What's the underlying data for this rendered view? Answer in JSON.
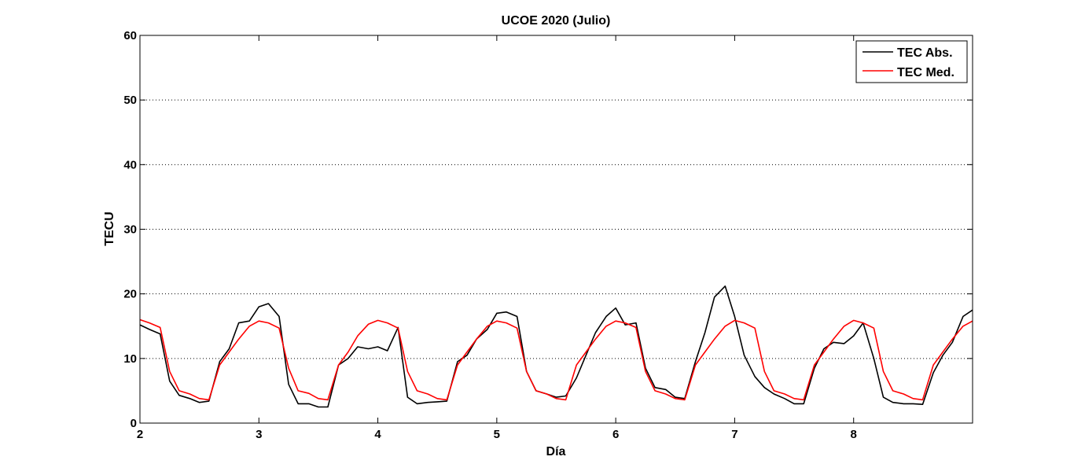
{
  "chart_data": {
    "type": "line",
    "title": "UCOE 2020 (Julio)",
    "xlabel": "Día",
    "ylabel": "TECU",
    "xlim": [
      2,
      9
    ],
    "ylim": [
      0,
      60
    ],
    "xticks": [
      2,
      3,
      4,
      5,
      6,
      7,
      8
    ],
    "yticks": [
      0,
      10,
      20,
      30,
      40,
      50,
      60
    ],
    "grid": "horizontal-dotted",
    "legend_position": "top-right",
    "series": [
      {
        "name": "TEC Abs.",
        "color": "#000000",
        "points": [
          [
            2.0,
            15.2
          ],
          [
            2.08,
            14.5
          ],
          [
            2.17,
            13.8
          ],
          [
            2.25,
            6.5
          ],
          [
            2.33,
            4.3
          ],
          [
            2.42,
            3.8
          ],
          [
            2.5,
            3.2
          ],
          [
            2.58,
            3.4
          ],
          [
            2.67,
            9.5
          ],
          [
            2.75,
            11.5
          ],
          [
            2.83,
            15.5
          ],
          [
            2.92,
            15.8
          ],
          [
            3.0,
            18.0
          ],
          [
            3.08,
            18.5
          ],
          [
            3.17,
            16.5
          ],
          [
            3.25,
            6.0
          ],
          [
            3.33,
            3.0
          ],
          [
            3.42,
            3.0
          ],
          [
            3.5,
            2.5
          ],
          [
            3.58,
            2.5
          ],
          [
            3.67,
            9.0
          ],
          [
            3.75,
            10.0
          ],
          [
            3.83,
            11.8
          ],
          [
            3.92,
            11.5
          ],
          [
            4.0,
            11.8
          ],
          [
            4.08,
            11.2
          ],
          [
            4.17,
            14.8
          ],
          [
            4.25,
            4.0
          ],
          [
            4.33,
            3.0
          ],
          [
            4.42,
            3.2
          ],
          [
            4.5,
            3.3
          ],
          [
            4.58,
            3.4
          ],
          [
            4.67,
            9.5
          ],
          [
            4.75,
            10.5
          ],
          [
            4.83,
            13.0
          ],
          [
            4.92,
            14.5
          ],
          [
            5.0,
            17.0
          ],
          [
            5.08,
            17.2
          ],
          [
            5.17,
            16.5
          ],
          [
            5.25,
            8.0
          ],
          [
            5.33,
            5.0
          ],
          [
            5.42,
            4.5
          ],
          [
            5.5,
            4.0
          ],
          [
            5.58,
            4.2
          ],
          [
            5.67,
            7.0
          ],
          [
            5.75,
            10.5
          ],
          [
            5.83,
            14.0
          ],
          [
            5.92,
            16.5
          ],
          [
            6.0,
            17.8
          ],
          [
            6.08,
            15.2
          ],
          [
            6.17,
            15.5
          ],
          [
            6.25,
            8.5
          ],
          [
            6.33,
            5.5
          ],
          [
            6.42,
            5.2
          ],
          [
            6.5,
            4.0
          ],
          [
            6.58,
            3.8
          ],
          [
            6.67,
            9.5
          ],
          [
            6.75,
            14.0
          ],
          [
            6.83,
            19.5
          ],
          [
            6.92,
            21.2
          ],
          [
            7.0,
            16.5
          ],
          [
            7.08,
            10.5
          ],
          [
            7.17,
            7.2
          ],
          [
            7.25,
            5.5
          ],
          [
            7.33,
            4.5
          ],
          [
            7.42,
            3.8
          ],
          [
            7.5,
            3.0
          ],
          [
            7.58,
            3.0
          ],
          [
            7.67,
            8.5
          ],
          [
            7.75,
            11.5
          ],
          [
            7.83,
            12.5
          ],
          [
            7.92,
            12.3
          ],
          [
            8.0,
            13.5
          ],
          [
            8.08,
            15.5
          ],
          [
            8.17,
            10.0
          ],
          [
            8.25,
            4.0
          ],
          [
            8.33,
            3.2
          ],
          [
            8.42,
            3.0
          ],
          [
            8.5,
            3.0
          ],
          [
            8.58,
            2.9
          ],
          [
            8.67,
            7.8
          ],
          [
            8.75,
            10.5
          ],
          [
            8.83,
            12.5
          ],
          [
            8.92,
            16.5
          ],
          [
            9.0,
            17.5
          ]
        ]
      },
      {
        "name": "TEC Med.",
        "color": "#ff0000",
        "points": [
          [
            2.0,
            16.0
          ],
          [
            2.08,
            15.5
          ],
          [
            2.17,
            14.8
          ],
          [
            2.25,
            8.0
          ],
          [
            2.33,
            5.0
          ],
          [
            2.42,
            4.5
          ],
          [
            2.5,
            3.8
          ],
          [
            2.58,
            3.6
          ],
          [
            2.67,
            9.0
          ],
          [
            2.75,
            11.0
          ],
          [
            2.83,
            13.0
          ],
          [
            2.92,
            15.0
          ],
          [
            3.0,
            15.8
          ],
          [
            3.08,
            15.5
          ],
          [
            3.17,
            14.7
          ],
          [
            3.25,
            8.5
          ],
          [
            3.33,
            5.0
          ],
          [
            3.42,
            4.6
          ],
          [
            3.5,
            3.8
          ],
          [
            3.58,
            3.6
          ],
          [
            3.67,
            9.0
          ],
          [
            3.75,
            11.0
          ],
          [
            3.83,
            13.5
          ],
          [
            3.92,
            15.3
          ],
          [
            4.0,
            15.9
          ],
          [
            4.08,
            15.5
          ],
          [
            4.17,
            14.7
          ],
          [
            4.25,
            8.0
          ],
          [
            4.33,
            5.0
          ],
          [
            4.42,
            4.5
          ],
          [
            4.5,
            3.8
          ],
          [
            4.58,
            3.6
          ],
          [
            4.67,
            9.0
          ],
          [
            4.75,
            11.0
          ],
          [
            4.83,
            13.0
          ],
          [
            4.92,
            15.0
          ],
          [
            5.0,
            15.8
          ],
          [
            5.08,
            15.5
          ],
          [
            5.17,
            14.7
          ],
          [
            5.25,
            8.0
          ],
          [
            5.33,
            5.0
          ],
          [
            5.42,
            4.5
          ],
          [
            5.5,
            3.8
          ],
          [
            5.58,
            3.6
          ],
          [
            5.67,
            9.0
          ],
          [
            5.75,
            11.0
          ],
          [
            5.83,
            13.0
          ],
          [
            5.92,
            15.0
          ],
          [
            6.0,
            15.8
          ],
          [
            6.08,
            15.5
          ],
          [
            6.17,
            14.8
          ],
          [
            6.25,
            8.0
          ],
          [
            6.33,
            5.0
          ],
          [
            6.42,
            4.5
          ],
          [
            6.5,
            3.8
          ],
          [
            6.58,
            3.6
          ],
          [
            6.67,
            9.0
          ],
          [
            6.75,
            11.0
          ],
          [
            6.83,
            13.0
          ],
          [
            6.92,
            15.0
          ],
          [
            7.0,
            15.9
          ],
          [
            7.08,
            15.5
          ],
          [
            7.17,
            14.7
          ],
          [
            7.25,
            8.0
          ],
          [
            7.33,
            5.0
          ],
          [
            7.42,
            4.5
          ],
          [
            7.5,
            3.8
          ],
          [
            7.58,
            3.6
          ],
          [
            7.67,
            9.0
          ],
          [
            7.75,
            11.0
          ],
          [
            7.83,
            13.0
          ],
          [
            7.92,
            15.0
          ],
          [
            8.0,
            15.9
          ],
          [
            8.08,
            15.5
          ],
          [
            8.17,
            14.7
          ],
          [
            8.25,
            8.0
          ],
          [
            8.33,
            5.0
          ],
          [
            8.42,
            4.5
          ],
          [
            8.5,
            3.8
          ],
          [
            8.58,
            3.6
          ],
          [
            8.67,
            9.0
          ],
          [
            8.75,
            11.0
          ],
          [
            8.83,
            13.0
          ],
          [
            8.92,
            15.0
          ],
          [
            9.0,
            15.8
          ]
        ]
      }
    ]
  }
}
